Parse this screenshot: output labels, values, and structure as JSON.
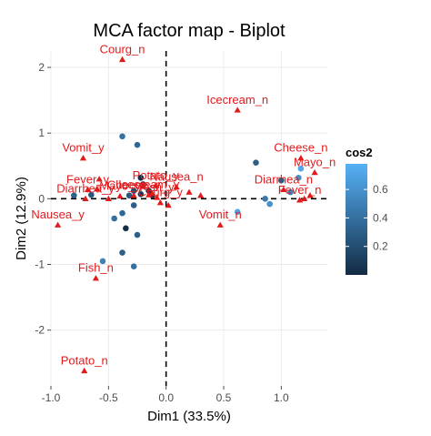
{
  "chart_data": {
    "type": "scatter",
    "title": "MCA factor map - Biplot",
    "xlabel": "Dim1 (33.5%)",
    "ylabel": "Dim2 (12.9%)",
    "xlim": [
      -1.0,
      1.4
    ],
    "ylim": [
      -2.85,
      2.25
    ],
    "x_ticks": [
      -1.0,
      -0.5,
      0.0,
      0.5,
      1.0
    ],
    "x_tick_labels": [
      "-1.0",
      "-0.5",
      "0.0",
      "0.5",
      "1.0"
    ],
    "y_ticks": [
      -2,
      -1,
      0,
      1,
      2
    ],
    "y_tick_labels": [
      "-2",
      "-1",
      "0",
      "1",
      "2"
    ],
    "grid": true,
    "reference_lines": [
      {
        "axis": "x",
        "value": 0,
        "style": "dashed"
      },
      {
        "axis": "y",
        "value": 0,
        "style": "dashed"
      }
    ],
    "legend": {
      "title": "cos2",
      "placement": "right",
      "ticks": [
        0.2,
        0.4,
        0.6
      ],
      "tick_labels": [
        "0.2",
        "0.4",
        "0.6"
      ],
      "range": [
        0.0,
        0.78
      ],
      "color_low": "#132B43",
      "color_high": "#56B1F7"
    },
    "individuals": [
      {
        "x": -0.38,
        "y": 0.95,
        "cos2": 0.4
      },
      {
        "x": -0.25,
        "y": 0.82,
        "cos2": 0.35
      },
      {
        "x": -0.22,
        "y": 0.32,
        "cos2": 0.02
      },
      {
        "x": -0.2,
        "y": 0.22,
        "cos2": 0.1
      },
      {
        "x": -0.28,
        "y": 0.12,
        "cos2": 0.2
      },
      {
        "x": -0.32,
        "y": 0.05,
        "cos2": 0.25
      },
      {
        "x": -0.22,
        "y": 0.07,
        "cos2": 0.08
      },
      {
        "x": -0.12,
        "y": 0.05,
        "cos2": 0.05
      },
      {
        "x": -0.15,
        "y": 0.12,
        "cos2": 0.06
      },
      {
        "x": -0.28,
        "y": -0.1,
        "cos2": 0.3
      },
      {
        "x": -0.38,
        "y": -0.22,
        "cos2": 0.35
      },
      {
        "x": -0.45,
        "y": -0.3,
        "cos2": 0.4
      },
      {
        "x": -0.35,
        "y": -0.45,
        "cos2": 0.02
      },
      {
        "x": -0.25,
        "y": -0.55,
        "cos2": 0.3
      },
      {
        "x": -0.38,
        "y": -0.82,
        "cos2": 0.3
      },
      {
        "x": -0.28,
        "y": -1.03,
        "cos2": 0.4
      },
      {
        "x": -0.55,
        "y": -0.95,
        "cos2": 0.5
      },
      {
        "x": -0.8,
        "y": 0.05,
        "cos2": 0.3
      },
      {
        "x": -0.65,
        "y": 0.06,
        "cos2": 0.25
      },
      {
        "x": 0.78,
        "y": 0.55,
        "cos2": 0.3
      },
      {
        "x": 1.0,
        "y": 0.28,
        "cos2": 0.25
      },
      {
        "x": 0.86,
        "y": 0.0,
        "cos2": 0.45
      },
      {
        "x": 0.9,
        "y": -0.08,
        "cos2": 0.6
      },
      {
        "x": 0.62,
        "y": -0.2,
        "cos2": 0.7
      },
      {
        "x": 1.08,
        "y": 0.1,
        "cos2": 0.5
      },
      {
        "x": 1.15,
        "y": 0.32,
        "cos2": 0.6
      },
      {
        "x": 1.17,
        "y": 0.46,
        "cos2": 0.72
      }
    ],
    "variables": [
      {
        "name": "Courg_n",
        "x": -0.38,
        "y": 2.12
      },
      {
        "name": "Icecream_n",
        "x": 0.62,
        "y": 1.35
      },
      {
        "name": "Vomit_y",
        "x": -0.72,
        "y": 0.62
      },
      {
        "name": "Cheese_n",
        "x": 1.17,
        "y": 0.62
      },
      {
        "name": "Mayo_n",
        "x": 1.29,
        "y": 0.4
      },
      {
        "name": "Potato_y",
        "x": -0.09,
        "y": 0.2
      },
      {
        "name": "Nausea_n",
        "x": 0.09,
        "y": 0.18
      },
      {
        "name": "Fever_y",
        "x": -0.68,
        "y": 0.14
      },
      {
        "name": "Diarrhea_y",
        "x": -0.7,
        "y": 0.0
      },
      {
        "name": "Diarrhea_n",
        "x": 1.02,
        "y": 0.14
      },
      {
        "name": "Fever_n",
        "x": 1.16,
        "y": -0.02
      },
      {
        "name": "Vomit_n",
        "x": 0.47,
        "y": -0.4
      },
      {
        "name": "Nausea_y",
        "x": -0.94,
        "y": -0.4
      },
      {
        "name": "Fish_n",
        "x": -0.61,
        "y": -1.21
      },
      {
        "name": "Potato_n",
        "x": -0.71,
        "y": -2.62
      },
      {
        "name": "Mayo_y",
        "x": -0.4,
        "y": 0.04
      },
      {
        "name": "Cheese_y",
        "x": -0.28,
        "y": 0.05
      },
      {
        "name": "Courg_y",
        "x": -0.05,
        "y": -0.06
      },
      {
        "name": "Icecream_y",
        "x": -0.15,
        "y": 0.06
      },
      {
        "name": "Fish_y",
        "x": -0.08,
        "y": 0.02
      },
      {
        "name": "",
        "x": -0.58,
        "y": 0.3
      },
      {
        "name": "",
        "x": -0.6,
        "y": 0.15
      },
      {
        "name": "",
        "x": -0.5,
        "y": 0.0
      },
      {
        "name": "",
        "x": -0.2,
        "y": 0.22
      },
      {
        "name": "",
        "x": -0.12,
        "y": 0.08
      },
      {
        "name": "",
        "x": 0.02,
        "y": -0.1
      },
      {
        "name": "",
        "x": 0.2,
        "y": 0.1
      },
      {
        "name": "",
        "x": 0.3,
        "y": 0.05
      },
      {
        "name": "",
        "x": 1.2,
        "y": 0.0
      },
      {
        "name": "",
        "x": 1.25,
        "y": 0.05
      }
    ]
  },
  "colors": {
    "variable_color": "#e31a1c",
    "label_color": "#e31a1c",
    "axis_text": "#4d4d4d",
    "grid": "#ebebeb",
    "reference_line": "#000000"
  }
}
